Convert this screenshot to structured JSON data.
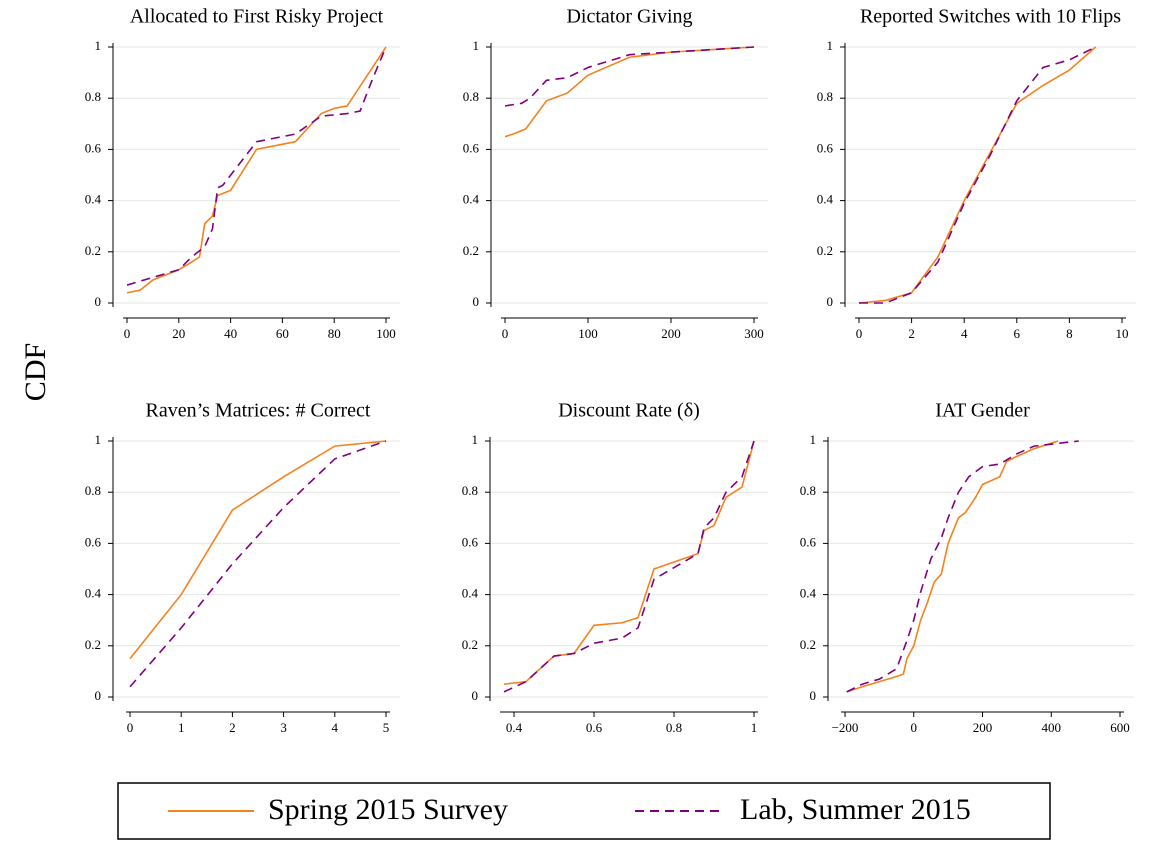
{
  "ylabel": "CDF",
  "chart_data": [
    {
      "type": "line",
      "title": "Allocated to First Risky Project",
      "xlim": [
        0,
        100
      ],
      "xticks": [
        0,
        20,
        40,
        60,
        80,
        100
      ],
      "ylim": [
        0,
        1
      ],
      "yticks": [
        0,
        0.2,
        0.4,
        0.6,
        0.8,
        1
      ],
      "grid": true,
      "series": [
        {
          "name": "Spring 2015 Survey",
          "color": "#f5821f",
          "line_style": "solid",
          "x": [
            0,
            5,
            10,
            15,
            20,
            25,
            28,
            30,
            33,
            35,
            40,
            50,
            65,
            75,
            80,
            85,
            100
          ],
          "values": [
            0.04,
            0.05,
            0.09,
            0.11,
            0.13,
            0.16,
            0.18,
            0.31,
            0.34,
            0.42,
            0.44,
            0.6,
            0.63,
            0.74,
            0.76,
            0.77,
            1
          ]
        },
        {
          "name": "Lab, Summer 2015",
          "color": "#800080",
          "line_style": "dashed",
          "x": [
            0,
            10,
            20,
            25,
            30,
            33,
            35,
            37,
            50,
            65,
            75,
            85,
            90,
            95,
            100
          ],
          "values": [
            0.07,
            0.1,
            0.13,
            0.18,
            0.22,
            0.29,
            0.45,
            0.46,
            0.63,
            0.66,
            0.73,
            0.74,
            0.75,
            0.88,
            1
          ]
        }
      ]
    },
    {
      "type": "line",
      "title": "Dictator Giving",
      "xlim": [
        0,
        300
      ],
      "xticks": [
        0,
        100,
        200,
        300
      ],
      "ylim": [
        0,
        1
      ],
      "yticks": [
        0,
        0.2,
        0.4,
        0.6,
        0.8,
        1
      ],
      "grid": true,
      "series": [
        {
          "name": "Spring 2015 Survey",
          "color": "#f5821f",
          "line_style": "solid",
          "x": [
            0,
            10,
            25,
            50,
            75,
            100,
            150,
            200,
            250,
            300
          ],
          "values": [
            0.65,
            0.66,
            0.68,
            0.79,
            0.82,
            0.89,
            0.96,
            0.98,
            0.99,
            1
          ]
        },
        {
          "name": "Lab, Summer 2015",
          "color": "#800080",
          "line_style": "dashed",
          "x": [
            0,
            20,
            30,
            50,
            75,
            100,
            150,
            200,
            300
          ],
          "values": [
            0.77,
            0.78,
            0.8,
            0.87,
            0.88,
            0.92,
            0.97,
            0.98,
            1
          ]
        }
      ]
    },
    {
      "type": "line",
      "title": "Reported Switches with 10 Flips",
      "xlim": [
        0,
        10
      ],
      "xticks": [
        0,
        2,
        4,
        6,
        8,
        10
      ],
      "ylim": [
        0,
        1
      ],
      "yticks": [
        0,
        0.2,
        0.4,
        0.6,
        0.8,
        1
      ],
      "grid": true,
      "series": [
        {
          "name": "Spring 2015 Survey",
          "color": "#f5821f",
          "line_style": "solid",
          "x": [
            0,
            1,
            2,
            3,
            4,
            5,
            6,
            7,
            8,
            9
          ],
          "values": [
            0,
            0.01,
            0.04,
            0.18,
            0.4,
            0.59,
            0.78,
            0.85,
            0.91,
            1
          ]
        },
        {
          "name": "Lab, Summer 2015",
          "color": "#800080",
          "line_style": "dashed",
          "x": [
            0,
            1,
            2,
            3,
            4,
            5,
            6,
            7,
            8,
            9
          ],
          "values": [
            0,
            0,
            0.04,
            0.16,
            0.39,
            0.58,
            0.79,
            0.92,
            0.95,
            1
          ]
        }
      ]
    },
    {
      "type": "line",
      "title": "Raven’s Matrices: # Correct",
      "xlim": [
        0,
        5
      ],
      "xticks": [
        0,
        1,
        2,
        3,
        4,
        5
      ],
      "ylim": [
        0,
        1
      ],
      "yticks": [
        0,
        0.2,
        0.4,
        0.6,
        0.8,
        1
      ],
      "grid": true,
      "series": [
        {
          "name": "Spring 2015 Survey",
          "color": "#f5821f",
          "line_style": "solid",
          "x": [
            0,
            1,
            2,
            3,
            4,
            5
          ],
          "values": [
            0.15,
            0.4,
            0.73,
            0.86,
            0.98,
            1
          ]
        },
        {
          "name": "Lab, Summer 2015",
          "color": "#800080",
          "line_style": "dashed",
          "x": [
            0,
            1,
            2,
            3,
            4,
            5
          ],
          "values": [
            0.04,
            0.27,
            0.52,
            0.74,
            0.93,
            1
          ]
        }
      ]
    },
    {
      "type": "line",
      "title": "Discount Rate (δ)",
      "xlim": [
        0.375,
        1
      ],
      "xticks": [
        0.4,
        0.6,
        0.8,
        1
      ],
      "ylim": [
        0,
        1
      ],
      "yticks": [
        0,
        0.2,
        0.4,
        0.6,
        0.8,
        1
      ],
      "grid": true,
      "series": [
        {
          "name": "Spring 2015 Survey",
          "color": "#f5821f",
          "line_style": "solid",
          "x": [
            0.375,
            0.43,
            0.5,
            0.55,
            0.6,
            0.67,
            0.71,
            0.75,
            0.86,
            0.875,
            0.9,
            0.93,
            0.97,
            1
          ],
          "values": [
            0.05,
            0.06,
            0.16,
            0.17,
            0.28,
            0.29,
            0.31,
            0.5,
            0.56,
            0.65,
            0.67,
            0.78,
            0.82,
            1
          ]
        },
        {
          "name": "Lab, Summer 2015",
          "color": "#800080",
          "line_style": "dashed",
          "x": [
            0.375,
            0.43,
            0.5,
            0.55,
            0.6,
            0.67,
            0.71,
            0.75,
            0.86,
            0.875,
            0.9,
            0.93,
            0.97,
            1
          ],
          "values": [
            0.02,
            0.06,
            0.16,
            0.17,
            0.21,
            0.23,
            0.27,
            0.46,
            0.56,
            0.66,
            0.7,
            0.8,
            0.86,
            1
          ]
        }
      ]
    },
    {
      "type": "line",
      "title": "IAT Gender",
      "xlim": [
        -200,
        600
      ],
      "xticks": [
        {
          "value": -200,
          "label": "−200"
        },
        0,
        200,
        400,
        600
      ],
      "ylim": [
        0,
        1
      ],
      "yticks": [
        0,
        0.2,
        0.4,
        0.6,
        0.8,
        1
      ],
      "grid": true,
      "series": [
        {
          "name": "Spring 2015 Survey",
          "color": "#f5821f",
          "line_style": "solid",
          "x": [
            -195,
            -150,
            -100,
            -50,
            -30,
            -20,
            0,
            20,
            40,
            60,
            80,
            100,
            130,
            150,
            180,
            200,
            250,
            270,
            300,
            350,
            420
          ],
          "values": [
            0.02,
            0.04,
            0.06,
            0.08,
            0.09,
            0.15,
            0.2,
            0.3,
            0.37,
            0.45,
            0.48,
            0.6,
            0.7,
            0.72,
            0.78,
            0.83,
            0.86,
            0.92,
            0.94,
            0.97,
            1
          ]
        },
        {
          "name": "Lab, Summer 2015",
          "color": "#800080",
          "line_style": "dashed",
          "x": [
            -195,
            -150,
            -100,
            -50,
            -20,
            0,
            20,
            50,
            80,
            100,
            130,
            160,
            200,
            250,
            300,
            350,
            480
          ],
          "values": [
            0.02,
            0.05,
            0.07,
            0.11,
            0.22,
            0.3,
            0.41,
            0.54,
            0.62,
            0.7,
            0.8,
            0.86,
            0.9,
            0.91,
            0.95,
            0.98,
            1
          ]
        }
      ]
    }
  ]
}
